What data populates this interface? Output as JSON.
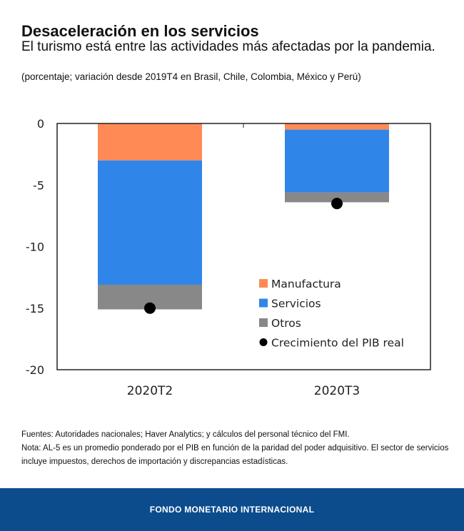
{
  "chart_data": {
    "type": "bar",
    "stacked": true,
    "title": "Desaceleración en los servicios",
    "subtitle": "El turismo está entre las actividades más afectadas por la pandemia.",
    "unit_note": "(porcentaje; variación desde 2019T4 en Brasil, Chile, Colombia, México y Perú)",
    "categories": [
      "2020T2",
      "2020T3"
    ],
    "series": [
      {
        "name": "Manufactura",
        "color": "#ff8a55",
        "values": [
          -3.0,
          -0.5
        ]
      },
      {
        "name": "Servicios",
        "color": "#2f86e8",
        "values": [
          -10.1,
          -5.1
        ]
      },
      {
        "name": "Otros",
        "color": "#888888",
        "values": [
          -2.0,
          -0.8
        ]
      }
    ],
    "points": {
      "name": "Crecimiento del PIB real",
      "color": "#000000",
      "values": [
        -15.0,
        -6.5
      ]
    },
    "ylim": [
      -20,
      0
    ],
    "yticks": [
      0,
      -5,
      -10,
      -15,
      -20
    ],
    "ytick_labels": [
      "0",
      "-5",
      "-10",
      "-15",
      "-20"
    ],
    "grid": false,
    "legend": "bottom-right"
  },
  "notes": {
    "sources": "Fuentes: Autoridades nacionales; Haver Analytics; y cálculos del personal técnico del FMI.",
    "note": "Nota: AL-5 es un promedio ponderado por el PIB en función de la paridad del poder adquisitivo. El sector de servicios incluye impuestos, derechos de importación y discrepancias estadísticas."
  },
  "footer": "FONDO MONETARIO INTERNACIONAL"
}
